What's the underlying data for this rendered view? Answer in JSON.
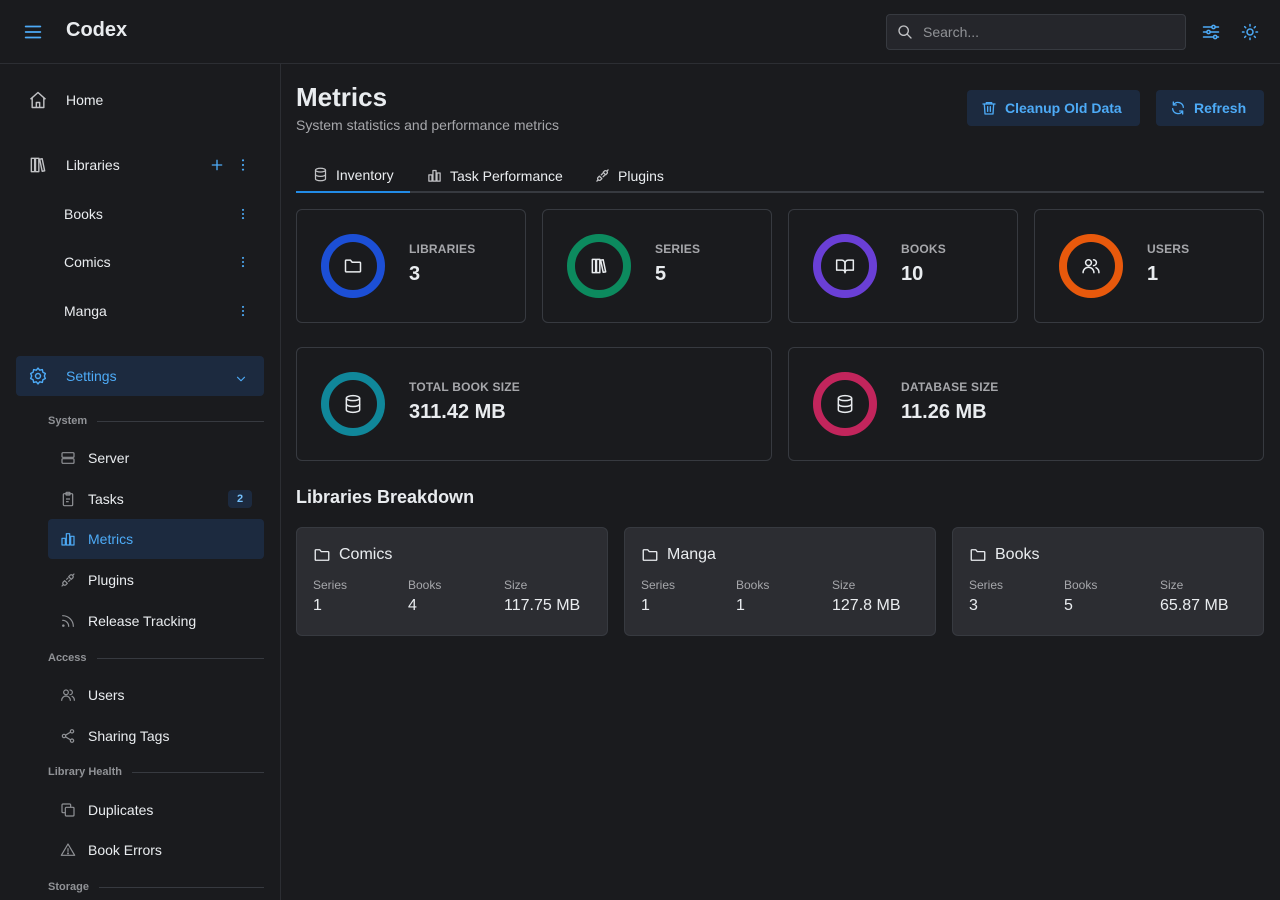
{
  "header": {
    "title": "Codex",
    "search_placeholder": "Search..."
  },
  "sidebar": {
    "home": "Home",
    "libraries": {
      "label": "Libraries",
      "items": [
        "Books",
        "Comics",
        "Manga"
      ]
    },
    "settings": "Settings",
    "sections": {
      "system": {
        "label": "System",
        "items": [
          "Server",
          "Tasks",
          "Metrics",
          "Plugins",
          "Release Tracking"
        ],
        "tasks_badge": "2"
      },
      "access": {
        "label": "Access",
        "items": [
          "Users",
          "Sharing Tags"
        ]
      },
      "health": {
        "label": "Library Health",
        "items": [
          "Duplicates",
          "Book Errors"
        ]
      },
      "storage": {
        "label": "Storage"
      }
    }
  },
  "main": {
    "title": "Metrics",
    "subtitle": "System statistics and performance metrics",
    "cleanup_label": "Cleanup Old Data",
    "refresh_label": "Refresh",
    "tabs": [
      "Inventory",
      "Task Performance",
      "Plugins"
    ],
    "stats": [
      {
        "label": "LIBRARIES",
        "value": "3",
        "color": "#1c4fd6"
      },
      {
        "label": "SERIES",
        "value": "5",
        "color": "#0c8a5e"
      },
      {
        "label": "BOOKS",
        "value": "10",
        "color": "#6a3fd6"
      },
      {
        "label": "USERS",
        "value": "1",
        "color": "#e8590c"
      },
      {
        "label": "TOTAL BOOK SIZE",
        "value": "311.42 MB",
        "color": "#10879a"
      },
      {
        "label": "DATABASE SIZE",
        "value": "11.26 MB",
        "color": "#c2255c"
      }
    ],
    "breakdown": {
      "title": "Libraries Breakdown",
      "col_series": "Series",
      "col_books": "Books",
      "col_size": "Size",
      "libraries": [
        {
          "name": "Comics",
          "series": "1",
          "books": "4",
          "size": "117.75 MB"
        },
        {
          "name": "Manga",
          "series": "1",
          "books": "1",
          "size": "127.8 MB"
        },
        {
          "name": "Books",
          "series": "3",
          "books": "5",
          "size": "65.87 MB"
        }
      ]
    }
  }
}
